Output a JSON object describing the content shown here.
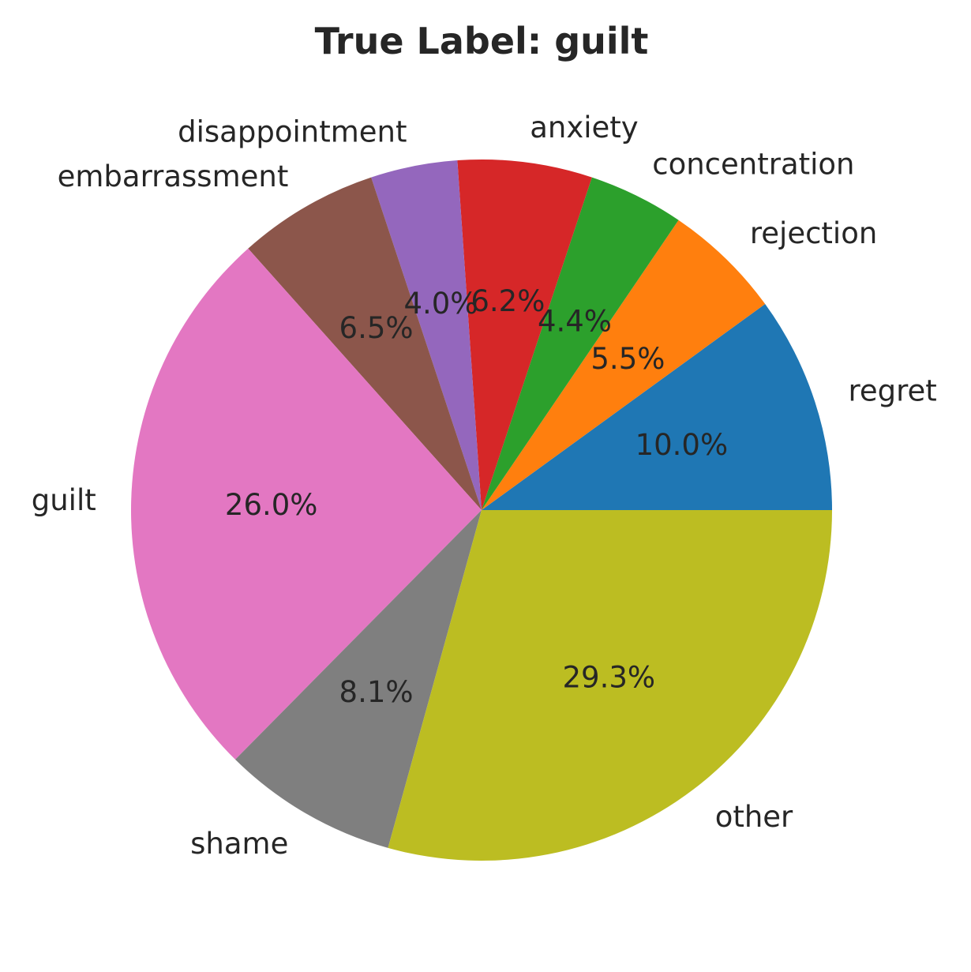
{
  "chart_data": {
    "type": "pie",
    "title": "True Label: guilt",
    "start_angle_deg": 0,
    "direction": "counterclockwise",
    "slices": [
      {
        "label": "regret",
        "value": 10.0,
        "pct_text": "10.0%",
        "color": "#1f77b4"
      },
      {
        "label": "rejection",
        "value": 5.5,
        "pct_text": "5.5%",
        "color": "#ff7f0e"
      },
      {
        "label": "concentration",
        "value": 4.4,
        "pct_text": "4.4%",
        "color": "#2ca02c"
      },
      {
        "label": "anxiety",
        "value": 6.2,
        "pct_text": "6.2%",
        "color": "#d62728"
      },
      {
        "label": "disappointment",
        "value": 4.0,
        "pct_text": "4.0%",
        "color": "#9467bd"
      },
      {
        "label": "embarrassment",
        "value": 6.5,
        "pct_text": "6.5%",
        "color": "#8c564b"
      },
      {
        "label": "guilt",
        "value": 26.0,
        "pct_text": "26.0%",
        "color": "#e377c2"
      },
      {
        "label": "shame",
        "value": 8.1,
        "pct_text": "8.1%",
        "color": "#7f7f7f"
      },
      {
        "label": "other",
        "value": 29.3,
        "pct_text": "29.3%",
        "color": "#bcbd22"
      }
    ]
  }
}
